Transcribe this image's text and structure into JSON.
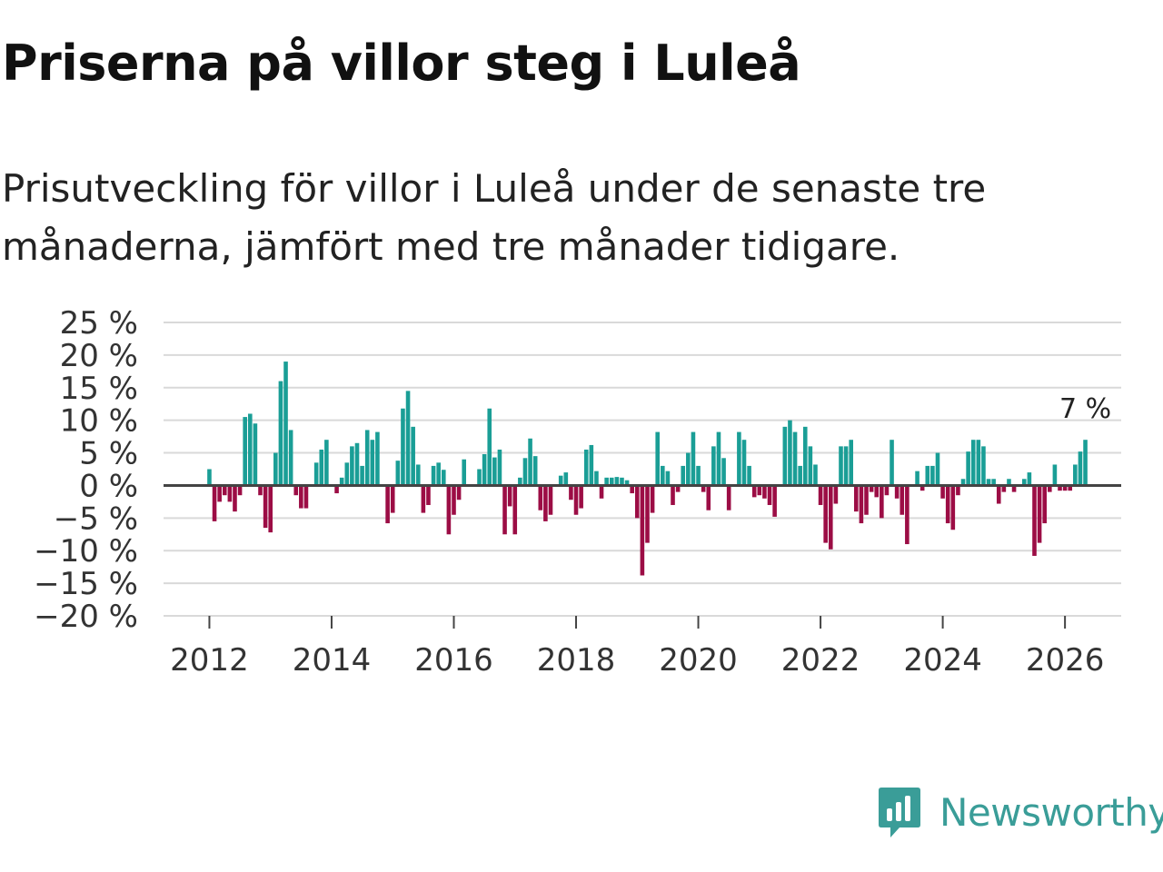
{
  "title": "Priserna på villor steg i Luleå",
  "subtitle": "Prisutveckling för villor i Luleå under de senaste tre månaderna, jämfört med tre månader tidigare.",
  "brand": "Newsworthy",
  "colors": {
    "positive": "#1a9e96",
    "negative": "#9c0d45",
    "grid": "#d9d9d9",
    "zero": "#444444"
  },
  "chart_data": {
    "type": "bar",
    "title": "Priserna på villor steg i Luleå",
    "xlabel": "",
    "ylabel": "",
    "ylim": [
      -20,
      25
    ],
    "yticks": [
      25,
      20,
      15,
      10,
      5,
      0,
      -5,
      -10,
      -15,
      -20
    ],
    "ytick_labels": [
      "25 %",
      "20 %",
      "15 %",
      "10 %",
      "5 %",
      "0 %",
      "−5 %",
      "−10 %",
      "−15 %",
      "−20 %"
    ],
    "xlim": [
      2011.25,
      2026.92
    ],
    "xticks": [
      2012,
      2014,
      2016,
      2018,
      2020,
      2022,
      2024,
      2026
    ],
    "xtick_labels": [
      "2012",
      "2014",
      "2016",
      "2018",
      "2020",
      "2022",
      "2024",
      "2026"
    ],
    "start": {
      "year": 2012,
      "month": 1
    },
    "end_label": "7 %",
    "values": [
      2.5,
      -5.5,
      -2.5,
      -1.5,
      -2.5,
      -4,
      -1.5,
      10.5,
      11,
      9.5,
      -1.5,
      -6.5,
      -7.2,
      5,
      16,
      19,
      8.5,
      -1.5,
      -3.5,
      -3.5,
      0,
      3.5,
      5.5,
      7,
      0,
      -1.2,
      1.2,
      3.5,
      6,
      6.5,
      3,
      8.5,
      7,
      8.2,
      0,
      -5.8,
      -4.2,
      3.8,
      11.8,
      14.5,
      9,
      3.2,
      -4.2,
      -3,
      3,
      3.5,
      2.4,
      -7.5,
      -4.5,
      -2.2,
      4,
      0,
      0,
      2.5,
      4.8,
      11.8,
      4.3,
      5.5,
      -7.5,
      -3.2,
      -7.5,
      1.2,
      4.2,
      7.2,
      4.5,
      -3.8,
      -5.5,
      -4.5,
      0,
      1.5,
      2,
      -2.2,
      -4.5,
      -3.5,
      5.5,
      6.2,
      2.2,
      -2,
      1.2,
      1.2,
      1.3,
      1.2,
      0.8,
      -1.2,
      -5,
      -13.8,
      -8.8,
      -4.2,
      8.2,
      3,
      2.2,
      -3,
      -1,
      3,
      5,
      8.2,
      3,
      -1,
      -3.8,
      6,
      8.2,
      4.2,
      -3.8,
      0,
      8.2,
      7,
      3,
      -1.8,
      -1.5,
      -2,
      -3,
      -4.8,
      0,
      9,
      10,
      8.2,
      3,
      9,
      6,
      3.2,
      -3,
      -8.8,
      -9.8,
      -2.8,
      6,
      6,
      7,
      -4,
      -5.8,
      -4.5,
      -1,
      -1.8,
      -5,
      -1.5,
      7,
      -2,
      -4.5,
      -9,
      0,
      2.2,
      -0.8,
      3,
      3,
      5,
      -2,
      -5.8,
      -6.8,
      -1.5,
      1,
      5.2,
      7,
      7,
      6,
      1,
      1,
      -2.8,
      -1,
      1,
      -1,
      0,
      1,
      2,
      -10.8,
      -8.8,
      -5.8,
      -1,
      3.2,
      -0.8,
      -0.8,
      -0.8,
      3.2,
      5.2,
      7
    ]
  }
}
